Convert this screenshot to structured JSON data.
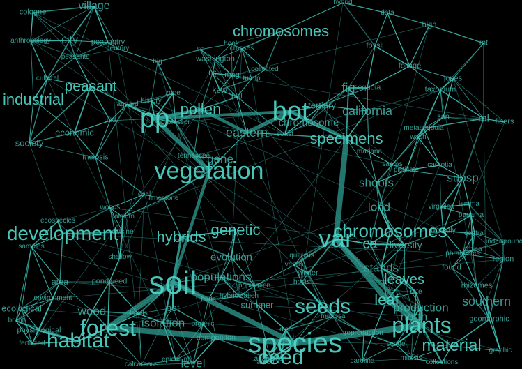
{
  "colors": {
    "background": "#000000",
    "edge": "#40c9be",
    "edge_strong": "#2f9d93",
    "text": "#4fd6c8",
    "text_dim": "#44b8ad"
  },
  "words": [
    "cologne",
    "village",
    "hybrid",
    "data",
    "high",
    "chromosomes",
    "fossil",
    "mt",
    "anthropology",
    "city",
    "peasantry",
    "century",
    "peasants",
    "hook",
    "crosses",
    "sc",
    "washington",
    "big",
    "foliage",
    "peasant",
    "industrial",
    "cultural",
    "collected",
    "mag",
    "turnip",
    "ns",
    "kew",
    "fig",
    "sequoia",
    "jones",
    "taxodium",
    "zone",
    "history",
    "bull",
    "bot",
    "tertiary",
    "california",
    "pp",
    "pollen",
    "laggard",
    "upd",
    "professor",
    "chromosome",
    "eastern",
    "san",
    "ml",
    "economic",
    "metasequoia",
    "wash",
    "fibers",
    "specimens",
    "society",
    "coast",
    "mariana",
    "meiosis",
    "vegetation",
    "gene",
    "tennessee",
    "santos",
    "pistillate",
    "carnotia",
    "shoots",
    "subsp",
    "woods",
    "coal",
    "limestone",
    "lond",
    "virginica",
    "lemma",
    "panama",
    "genetic",
    "development",
    "hybrids",
    "var",
    "broadly",
    "central",
    "underground",
    "samples",
    "ecospecies",
    "calcium",
    "shallow",
    "evolution",
    "quercus",
    "venus",
    "stands",
    "phragmites",
    "arnica",
    "region",
    "found",
    "soil",
    "populations",
    "winter",
    "leaves",
    "rhizomes",
    "area",
    "environment",
    "pondweed",
    "leaf",
    "southern",
    "wood",
    "birds",
    "hybridization",
    "summer",
    "seeds",
    "production",
    "north",
    "forest",
    "levels",
    "organic",
    "mimosa",
    "plants",
    "habitat",
    "competition",
    "species",
    "material",
    "sedge",
    "carolina",
    "level",
    "collections",
    "epicalum",
    "mitosis",
    "mamed",
    "ceed",
    "calcareous",
    "graphic",
    "ecological",
    "physiological",
    "fertilized",
    "isolation",
    "reproduction",
    "adaptation",
    "brunt",
    "bot",
    "chromosomes",
    "hosts",
    "rate",
    "disc",
    "population",
    "diversity",
    "geomorphic",
    "ca",
    "calcine"
  ]
}
